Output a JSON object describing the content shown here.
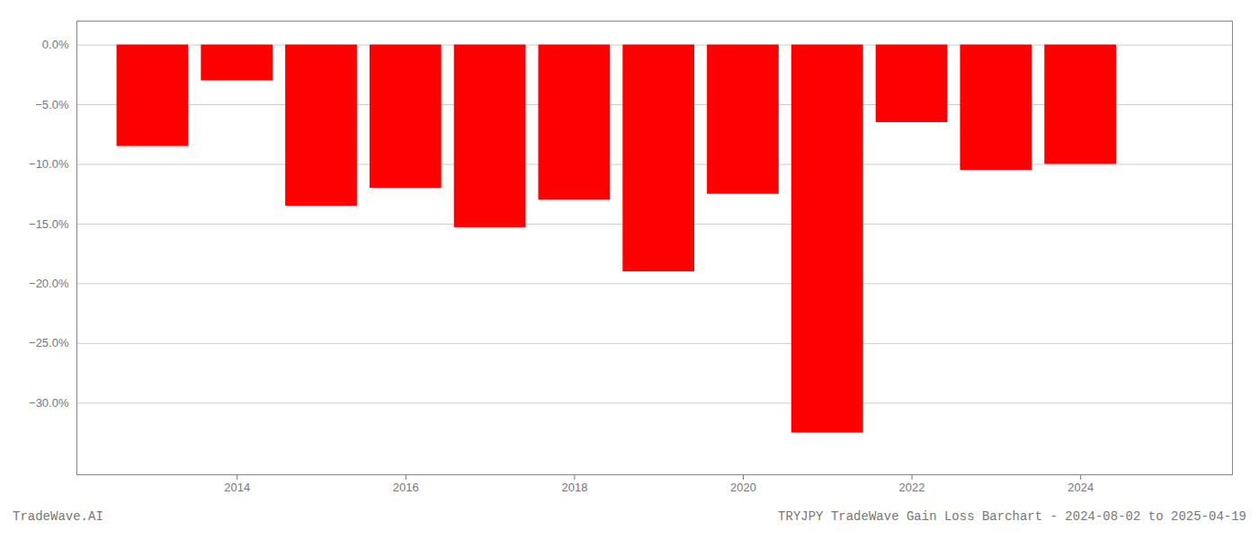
{
  "chart_data": {
    "type": "bar",
    "annotations": [
      "TradeWave.AI",
      "TRYJPY TradeWave Gain Loss Barchart - 2024-08-02 to 2025-04-19"
    ],
    "x": [
      2013,
      2014,
      2015,
      2016,
      2017,
      2018,
      2019,
      2020,
      2021,
      2022,
      2023,
      2024
    ],
    "values": [
      -8.5,
      -3.0,
      -13.5,
      -12.0,
      -15.3,
      -13.0,
      -19.0,
      -12.5,
      -32.5,
      -6.5,
      -10.5,
      -10.0
    ],
    "color": "#ff0000",
    "xlim": [
      2012.1,
      2025.8
    ],
    "xticks": [
      2014,
      2016,
      2018,
      2020,
      2022,
      2024
    ],
    "ylim": [
      -36,
      2.0
    ],
    "yticks": [
      {
        "value": 0.0,
        "label": "0.0%"
      },
      {
        "value": -5.0,
        "label": "−5.0%"
      },
      {
        "value": -10.0,
        "label": "−10.0%"
      },
      {
        "value": -15.0,
        "label": "−15.0%"
      },
      {
        "value": -20.0,
        "label": "−20.0%"
      },
      {
        "value": -25.0,
        "label": "−25.0%"
      },
      {
        "value": -30.0,
        "label": "−30.0%"
      }
    ],
    "grid": true
  }
}
